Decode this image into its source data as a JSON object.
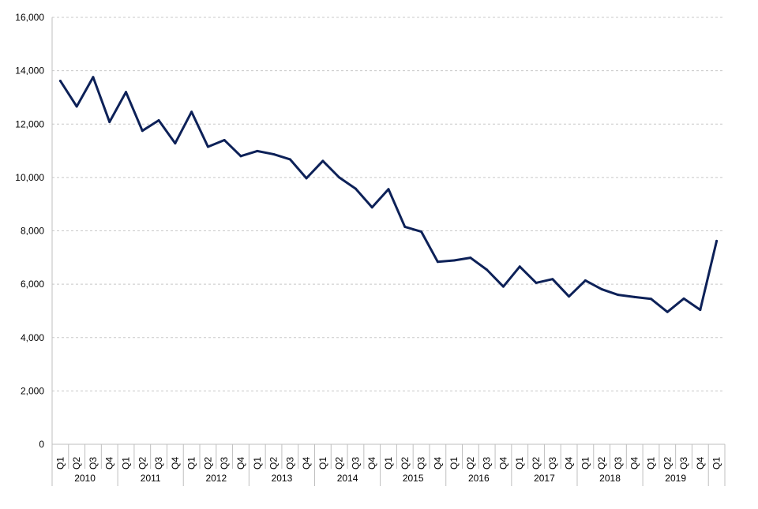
{
  "chart_data": {
    "type": "line",
    "title": "",
    "xlabel": "",
    "ylabel": "",
    "ylim": [
      0,
      16000
    ],
    "y_ticks": [
      0,
      2000,
      4000,
      6000,
      8000,
      10000,
      12000,
      14000,
      16000
    ],
    "y_tick_labels": [
      "0",
      "2,000",
      "4,000",
      "6,000",
      "8,000",
      "10,000",
      "12,000",
      "14,000",
      "16,000"
    ],
    "grid": "horizontal dashed",
    "legend": "none",
    "line_color": "#0d2158",
    "groups": [
      {
        "label": "2010",
        "quarters": [
          "Q1",
          "Q2",
          "Q3",
          "Q4"
        ]
      },
      {
        "label": "2011",
        "quarters": [
          "Q1",
          "Q2",
          "Q3",
          "Q4"
        ]
      },
      {
        "label": "2012",
        "quarters": [
          "Q1",
          "Q2",
          "Q3",
          "Q4"
        ]
      },
      {
        "label": "2013",
        "quarters": [
          "Q1",
          "Q2",
          "Q3",
          "Q4"
        ]
      },
      {
        "label": "2014",
        "quarters": [
          "Q1",
          "Q2",
          "Q3",
          "Q4"
        ]
      },
      {
        "label": "2015",
        "quarters": [
          "Q1",
          "Q2",
          "Q3",
          "Q4"
        ]
      },
      {
        "label": "2016",
        "quarters": [
          "Q1",
          "Q2",
          "Q3",
          "Q4"
        ]
      },
      {
        "label": "2017",
        "quarters": [
          "Q1",
          "Q2",
          "Q3",
          "Q4"
        ]
      },
      {
        "label": "2018",
        "quarters": [
          "Q1",
          "Q2",
          "Q3",
          "Q4"
        ]
      },
      {
        "label": "2019",
        "quarters": [
          "Q1",
          "Q2",
          "Q3",
          "Q4"
        ]
      },
      {
        "label": "",
        "quarters": [
          "Q1"
        ]
      }
    ],
    "series": [
      {
        "values": [
          13620,
          12660,
          13760,
          12080,
          13200,
          11750,
          12140,
          11280,
          12460,
          11150,
          11400,
          10800,
          10990,
          10870,
          10680,
          9970,
          10620,
          10000,
          9580,
          8880,
          9560,
          8150,
          7970,
          6840,
          6890,
          6990,
          6540,
          5910,
          6660,
          6050,
          6190,
          5540,
          6140,
          5810,
          5600,
          5520,
          5450,
          4960,
          5460,
          5040,
          7620
        ]
      }
    ]
  }
}
